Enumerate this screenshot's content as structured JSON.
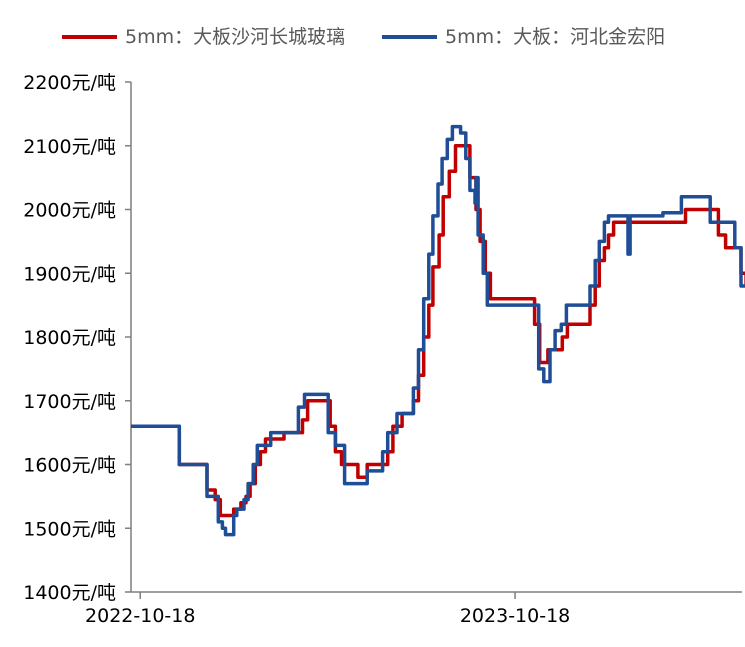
{
  "chart_data": {
    "type": "line",
    "title": "",
    "xlabel": "",
    "ylabel": "",
    "ylim": [
      1400,
      2200
    ],
    "y_ticks": [
      1400,
      1500,
      1600,
      1700,
      1800,
      1900,
      2000,
      2100,
      2200
    ],
    "y_tick_suffix": "元/吨",
    "x_ticks": [
      "2022-10-18",
      "2023-10-18"
    ],
    "x_range_days": [
      -9,
      586
    ],
    "grid": false,
    "legend_position": "top",
    "series": [
      {
        "name": "5mm：大板沙河长城玻璃",
        "color": "#c00000",
        "step": true,
        "points": [
          [
            -9,
            1660
          ],
          [
            38,
            1660
          ],
          [
            38,
            1600
          ],
          [
            65,
            1600
          ],
          [
            65,
            1560
          ],
          [
            73,
            1560
          ],
          [
            73,
            1545
          ],
          [
            78,
            1545
          ],
          [
            78,
            1520
          ],
          [
            91,
            1520
          ],
          [
            91,
            1530
          ],
          [
            98,
            1530
          ],
          [
            98,
            1540
          ],
          [
            103,
            1540
          ],
          [
            103,
            1550
          ],
          [
            107,
            1550
          ],
          [
            107,
            1570
          ],
          [
            112,
            1570
          ],
          [
            112,
            1600
          ],
          [
            117,
            1600
          ],
          [
            117,
            1620
          ],
          [
            122,
            1620
          ],
          [
            122,
            1640
          ],
          [
            140,
            1640
          ],
          [
            140,
            1650
          ],
          [
            158,
            1650
          ],
          [
            158,
            1670
          ],
          [
            163,
            1670
          ],
          [
            163,
            1700
          ],
          [
            185,
            1700
          ],
          [
            185,
            1660
          ],
          [
            190,
            1660
          ],
          [
            190,
            1620
          ],
          [
            196,
            1620
          ],
          [
            196,
            1600
          ],
          [
            212,
            1600
          ],
          [
            212,
            1580
          ],
          [
            221,
            1580
          ],
          [
            221,
            1600
          ],
          [
            241,
            1600
          ],
          [
            241,
            1620
          ],
          [
            246,
            1620
          ],
          [
            246,
            1660
          ],
          [
            255,
            1660
          ],
          [
            255,
            1680
          ],
          [
            266,
            1680
          ],
          [
            266,
            1700
          ],
          [
            271,
            1700
          ],
          [
            271,
            1740
          ],
          [
            276,
            1740
          ],
          [
            276,
            1800
          ],
          [
            281,
            1800
          ],
          [
            281,
            1850
          ],
          [
            285,
            1850
          ],
          [
            285,
            1910
          ],
          [
            291,
            1910
          ],
          [
            291,
            1960
          ],
          [
            295,
            1960
          ],
          [
            295,
            2020
          ],
          [
            301,
            2020
          ],
          [
            301,
            2060
          ],
          [
            307,
            2060
          ],
          [
            307,
            2100
          ],
          [
            321,
            2100
          ],
          [
            321,
            2050
          ],
          [
            327,
            2050
          ],
          [
            327,
            2000
          ],
          [
            331,
            2000
          ],
          [
            331,
            1950
          ],
          [
            336,
            1950
          ],
          [
            336,
            1900
          ],
          [
            341,
            1900
          ],
          [
            341,
            1860
          ],
          [
            384,
            1860
          ],
          [
            384,
            1820
          ],
          [
            389,
            1820
          ],
          [
            389,
            1760
          ],
          [
            397,
            1760
          ],
          [
            397,
            1780
          ],
          [
            411,
            1780
          ],
          [
            411,
            1800
          ],
          [
            416,
            1800
          ],
          [
            416,
            1820
          ],
          [
            438,
            1820
          ],
          [
            438,
            1850
          ],
          [
            443,
            1850
          ],
          [
            443,
            1880
          ],
          [
            447,
            1880
          ],
          [
            447,
            1920
          ],
          [
            452,
            1920
          ],
          [
            452,
            1940
          ],
          [
            456,
            1940
          ],
          [
            456,
            1960
          ],
          [
            461,
            1960
          ],
          [
            461,
            1980
          ],
          [
            531,
            1980
          ],
          [
            531,
            2000
          ],
          [
            563,
            2000
          ],
          [
            563,
            1960
          ],
          [
            570,
            1960
          ],
          [
            570,
            1940
          ],
          [
            585,
            1940
          ],
          [
            585,
            1900
          ],
          [
            590,
            1900
          ],
          [
            590,
            1880
          ],
          [
            604,
            1880
          ],
          [
            604,
            1860
          ],
          [
            609,
            1860
          ],
          [
            609,
            1880
          ],
          [
            615,
            1880
          ],
          [
            615,
            1860
          ],
          [
            622,
            1860
          ]
        ]
      },
      {
        "name": "5mm：大板：河北金宏阳",
        "color": "#1f4e96",
        "step": true,
        "points": [
          [
            -9,
            1660
          ],
          [
            38,
            1660
          ],
          [
            38,
            1600
          ],
          [
            65,
            1600
          ],
          [
            65,
            1550
          ],
          [
            76,
            1550
          ],
          [
            76,
            1510
          ],
          [
            80,
            1510
          ],
          [
            80,
            1500
          ],
          [
            83,
            1500
          ],
          [
            83,
            1490
          ],
          [
            91,
            1490
          ],
          [
            91,
            1520
          ],
          [
            94,
            1520
          ],
          [
            94,
            1530
          ],
          [
            101,
            1530
          ],
          [
            101,
            1545
          ],
          [
            105,
            1545
          ],
          [
            105,
            1570
          ],
          [
            110,
            1570
          ],
          [
            110,
            1600
          ],
          [
            114,
            1600
          ],
          [
            114,
            1630
          ],
          [
            127,
            1630
          ],
          [
            127,
            1650
          ],
          [
            154,
            1650
          ],
          [
            154,
            1690
          ],
          [
            160,
            1690
          ],
          [
            160,
            1710
          ],
          [
            183,
            1710
          ],
          [
            183,
            1650
          ],
          [
            190,
            1650
          ],
          [
            190,
            1630
          ],
          [
            199,
            1630
          ],
          [
            199,
            1570
          ],
          [
            221,
            1570
          ],
          [
            221,
            1590
          ],
          [
            236,
            1590
          ],
          [
            236,
            1620
          ],
          [
            241,
            1620
          ],
          [
            241,
            1650
          ],
          [
            250,
            1650
          ],
          [
            250,
            1680
          ],
          [
            266,
            1680
          ],
          [
            266,
            1720
          ],
          [
            271,
            1720
          ],
          [
            271,
            1780
          ],
          [
            276,
            1780
          ],
          [
            276,
            1860
          ],
          [
            281,
            1860
          ],
          [
            281,
            1930
          ],
          [
            285,
            1930
          ],
          [
            285,
            1990
          ],
          [
            290,
            1990
          ],
          [
            290,
            2040
          ],
          [
            294,
            2040
          ],
          [
            294,
            2080
          ],
          [
            299,
            2080
          ],
          [
            299,
            2110
          ],
          [
            304,
            2110
          ],
          [
            304,
            2130
          ],
          [
            312,
            2130
          ],
          [
            312,
            2120
          ],
          [
            317,
            2120
          ],
          [
            317,
            2080
          ],
          [
            321,
            2080
          ],
          [
            321,
            2030
          ],
          [
            326,
            2030
          ],
          [
            326,
            2010
          ],
          [
            327,
            2010
          ],
          [
            327,
            2050
          ],
          [
            329,
            2050
          ],
          [
            329,
            1960
          ],
          [
            334,
            1960
          ],
          [
            334,
            1900
          ],
          [
            338,
            1900
          ],
          [
            338,
            1850
          ],
          [
            388,
            1850
          ],
          [
            388,
            1750
          ],
          [
            393,
            1750
          ],
          [
            393,
            1730
          ],
          [
            399,
            1730
          ],
          [
            399,
            1780
          ],
          [
            404,
            1780
          ],
          [
            404,
            1810
          ],
          [
            410,
            1810
          ],
          [
            410,
            1820
          ],
          [
            415,
            1820
          ],
          [
            415,
            1850
          ],
          [
            438,
            1850
          ],
          [
            438,
            1880
          ],
          [
            443,
            1880
          ],
          [
            443,
            1920
          ],
          [
            447,
            1920
          ],
          [
            447,
            1950
          ],
          [
            452,
            1950
          ],
          [
            452,
            1980
          ],
          [
            456,
            1980
          ],
          [
            456,
            1990
          ],
          [
            475,
            1990
          ],
          [
            475,
            1930
          ],
          [
            477,
            1930
          ],
          [
            477,
            1990
          ],
          [
            509,
            1990
          ],
          [
            509,
            1995
          ],
          [
            527,
            1995
          ],
          [
            527,
            2020
          ],
          [
            555,
            2020
          ],
          [
            555,
            1980
          ],
          [
            560,
            1980
          ],
          [
            560,
            1980
          ],
          [
            579,
            1980
          ],
          [
            579,
            1940
          ],
          [
            585,
            1940
          ],
          [
            585,
            1880
          ],
          [
            604,
            1880
          ],
          [
            604,
            1840
          ],
          [
            614,
            1840
          ],
          [
            614,
            1860
          ],
          [
            620,
            1860
          ],
          [
            620,
            1900
          ],
          [
            622,
            1900
          ]
        ]
      }
    ]
  }
}
